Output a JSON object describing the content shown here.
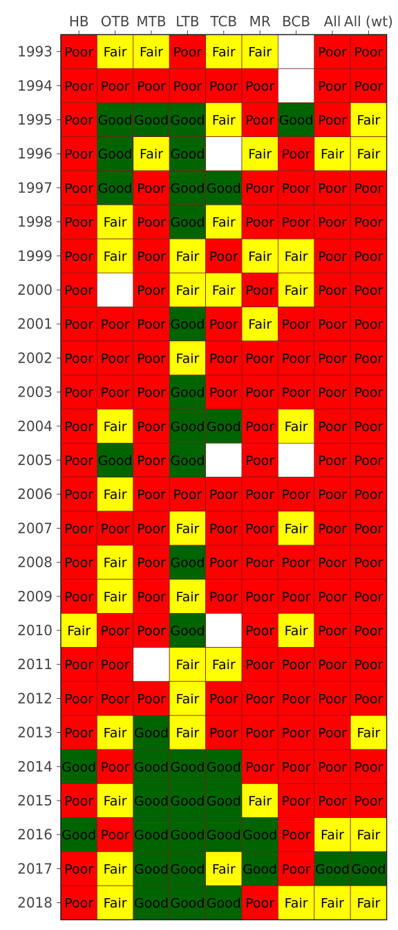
{
  "chart_data": {
    "type": "heatmap",
    "columns": [
      "HB",
      "OTB",
      "MTB",
      "LTB",
      "TCB",
      "MR",
      "BCB",
      "All",
      "All (wt)"
    ],
    "rows": [
      "1993",
      "1994",
      "1995",
      "1996",
      "1997",
      "1998",
      "1999",
      "2000",
      "2001",
      "2002",
      "2003",
      "2004",
      "2005",
      "2006",
      "2007",
      "2008",
      "2009",
      "2010",
      "2011",
      "2012",
      "2013",
      "2014",
      "2015",
      "2016",
      "2017",
      "2018"
    ],
    "values": [
      [
        "Poor",
        "Fair",
        "Fair",
        "Poor",
        "Fair",
        "Fair",
        null,
        "Poor",
        "Poor"
      ],
      [
        "Poor",
        "Poor",
        "Poor",
        "Poor",
        "Poor",
        "Poor",
        null,
        "Poor",
        "Poor"
      ],
      [
        "Poor",
        "Good",
        "Good",
        "Good",
        "Fair",
        "Poor",
        "Good",
        "Poor",
        "Fair"
      ],
      [
        "Poor",
        "Good",
        "Fair",
        "Good",
        null,
        "Fair",
        "Poor",
        "Fair",
        "Fair"
      ],
      [
        "Poor",
        "Good",
        "Poor",
        "Good",
        "Good",
        "Poor",
        "Poor",
        "Poor",
        "Poor"
      ],
      [
        "Poor",
        "Fair",
        "Poor",
        "Good",
        "Fair",
        "Poor",
        "Poor",
        "Poor",
        "Poor"
      ],
      [
        "Poor",
        "Fair",
        "Poor",
        "Fair",
        "Poor",
        "Fair",
        "Fair",
        "Poor",
        "Poor"
      ],
      [
        "Poor",
        null,
        "Poor",
        "Fair",
        "Fair",
        "Poor",
        "Fair",
        "Poor",
        "Poor"
      ],
      [
        "Poor",
        "Poor",
        "Poor",
        "Good",
        "Poor",
        "Fair",
        "Poor",
        "Poor",
        "Poor"
      ],
      [
        "Poor",
        "Poor",
        "Poor",
        "Fair",
        "Poor",
        "Poor",
        "Poor",
        "Poor",
        "Poor"
      ],
      [
        "Poor",
        "Poor",
        "Poor",
        "Good",
        "Poor",
        "Poor",
        "Poor",
        "Poor",
        "Poor"
      ],
      [
        "Poor",
        "Fair",
        "Poor",
        "Good",
        "Good",
        "Poor",
        "Fair",
        "Poor",
        "Poor"
      ],
      [
        "Poor",
        "Good",
        "Poor",
        "Good",
        null,
        "Poor",
        null,
        "Poor",
        "Poor"
      ],
      [
        "Poor",
        "Fair",
        "Poor",
        "Poor",
        "Poor",
        "Poor",
        "Poor",
        "Poor",
        "Poor"
      ],
      [
        "Poor",
        "Poor",
        "Poor",
        "Fair",
        "Poor",
        "Poor",
        "Fair",
        "Poor",
        "Poor"
      ],
      [
        "Poor",
        "Fair",
        "Poor",
        "Good",
        "Poor",
        "Poor",
        "Poor",
        "Poor",
        "Poor"
      ],
      [
        "Poor",
        "Fair",
        "Poor",
        "Fair",
        "Poor",
        "Poor",
        "Poor",
        "Poor",
        "Poor"
      ],
      [
        "Fair",
        "Poor",
        "Poor",
        "Good",
        null,
        "Poor",
        "Fair",
        "Poor",
        "Poor"
      ],
      [
        "Poor",
        "Poor",
        null,
        "Fair",
        "Fair",
        "Poor",
        "Poor",
        "Poor",
        "Poor"
      ],
      [
        "Poor",
        "Poor",
        "Poor",
        "Fair",
        "Poor",
        "Poor",
        "Poor",
        "Poor",
        "Poor"
      ],
      [
        "Poor",
        "Fair",
        "Good",
        "Fair",
        "Poor",
        "Poor",
        "Poor",
        "Poor",
        "Fair"
      ],
      [
        "Good",
        "Poor",
        "Good",
        "Good",
        "Good",
        "Poor",
        "Poor",
        "Poor",
        "Poor"
      ],
      [
        "Poor",
        "Fair",
        "Good",
        "Good",
        "Good",
        "Fair",
        "Poor",
        "Poor",
        "Poor"
      ],
      [
        "Good",
        "Poor",
        "Good",
        "Good",
        "Good",
        "Good",
        "Poor",
        "Fair",
        "Fair"
      ],
      [
        "Poor",
        "Fair",
        "Good",
        "Good",
        "Fair",
        "Good",
        "Poor",
        "Good",
        "Good"
      ],
      [
        "Poor",
        "Fair",
        "Good",
        "Good",
        "Good",
        "Poor",
        "Fair",
        "Fair",
        "Fair"
      ]
    ],
    "categories_colors": {
      "Poor": "#ff0000",
      "Fair": "#ffff00",
      "Good": "#006400"
    },
    "missing_color": "#ffffff",
    "grid": true,
    "x_axis_position": "top"
  }
}
